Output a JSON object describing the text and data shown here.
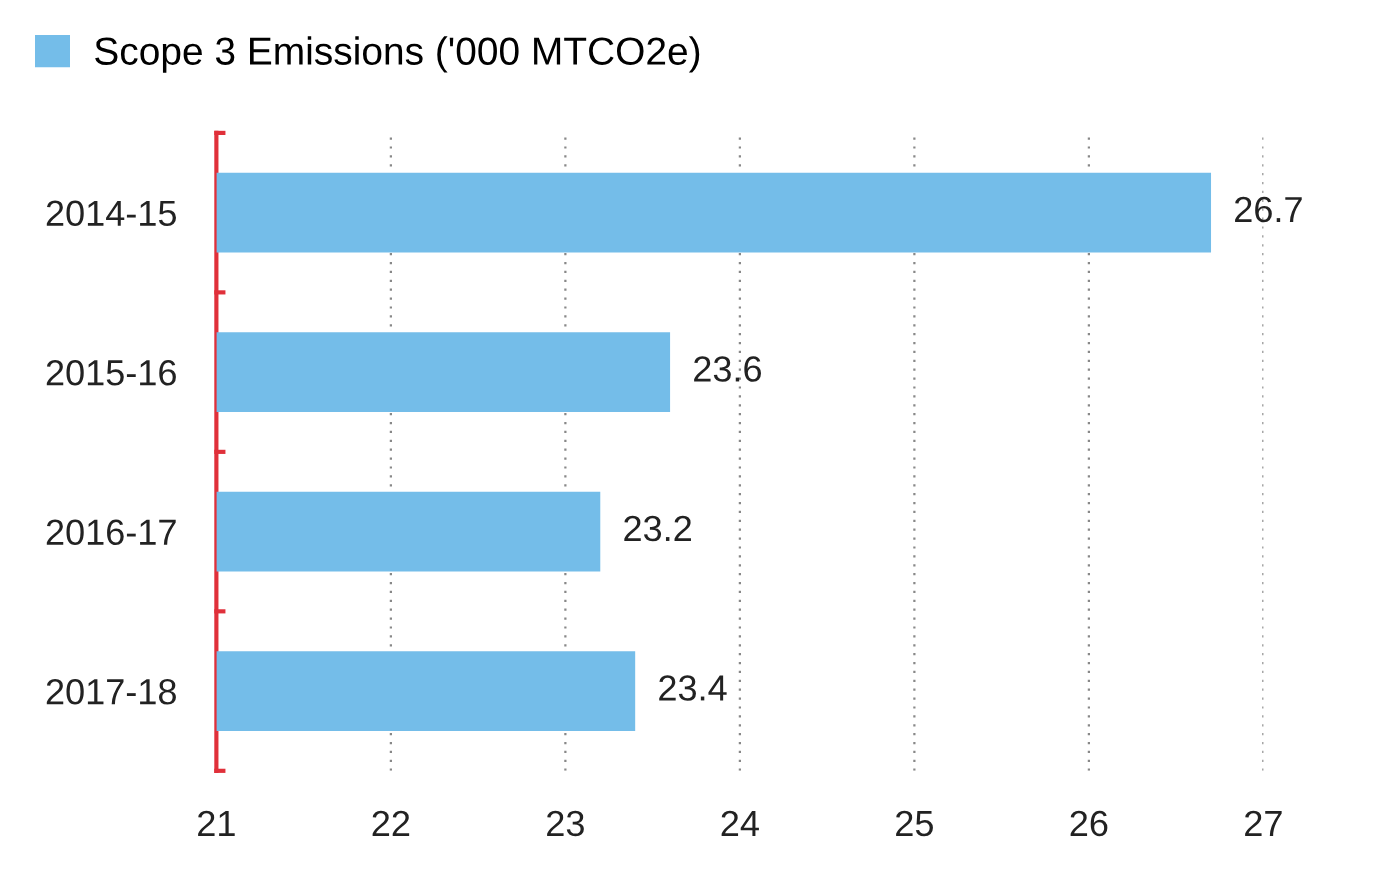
{
  "chart_data": {
    "type": "bar",
    "orientation": "horizontal",
    "categories": [
      "2014-15",
      "2015-16",
      "2016-17",
      "2017-18"
    ],
    "series": [
      {
        "name": "Scope 3 Emissions ('000 MTCO2e)",
        "color": "#74bde9",
        "values": [
          26.7,
          23.6,
          23.2,
          23.4
        ]
      }
    ],
    "xlim": [
      21,
      27
    ],
    "xticks": [
      21,
      22,
      23,
      24,
      25,
      26,
      27
    ],
    "grid": "x",
    "legend": "top left",
    "data_labels": true
  }
}
